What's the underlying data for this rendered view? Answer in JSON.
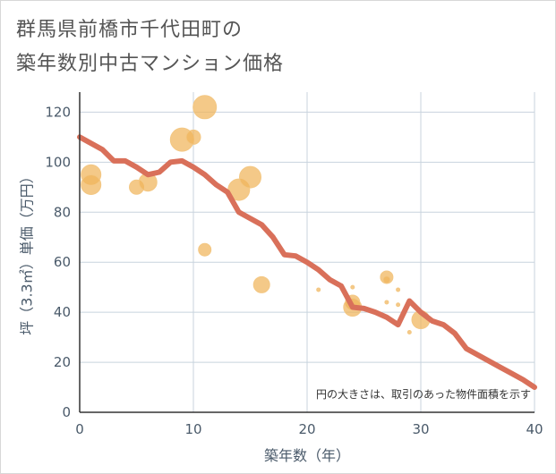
{
  "title_line1": "群馬県前橋市千代田町の",
  "title_line2": "築年数別中古マンション価格",
  "chart_data": {
    "type": "scatter",
    "title": "群馬県前橋市千代田町の築年数別中古マンション価格",
    "xlabel": "築年数（年）",
    "ylabel": "坪（3.3㎡）単価（万円）",
    "xlim": [
      0,
      40
    ],
    "ylim": [
      0,
      128
    ],
    "xticks": [
      0,
      10,
      20,
      30,
      40
    ],
    "yticks": [
      0,
      20,
      40,
      60,
      80,
      100,
      120
    ],
    "grid": true,
    "note": "円の大きさは、取引のあった物件面積を示す",
    "bubble_color": "#f0b45a",
    "line_color": "#d9705a",
    "points": [
      {
        "x": 1,
        "y": 95,
        "size": 11
      },
      {
        "x": 1,
        "y": 91,
        "size": 11
      },
      {
        "x": 5,
        "y": 90,
        "size": 8
      },
      {
        "x": 6,
        "y": 92,
        "size": 10
      },
      {
        "x": 9,
        "y": 109,
        "size": 13
      },
      {
        "x": 10,
        "y": 110,
        "size": 8
      },
      {
        "x": 11,
        "y": 122,
        "size": 13
      },
      {
        "x": 11,
        "y": 65,
        "size": 7
      },
      {
        "x": 14,
        "y": 89,
        "size": 12
      },
      {
        "x": 15,
        "y": 94,
        "size": 12
      },
      {
        "x": 16,
        "y": 51,
        "size": 9
      },
      {
        "x": 21,
        "y": 49,
        "size": 2
      },
      {
        "x": 24,
        "y": 50,
        "size": 2
      },
      {
        "x": 24,
        "y": 44,
        "size": 8
      },
      {
        "x": 24,
        "y": 42,
        "size": 10
      },
      {
        "x": 27,
        "y": 54,
        "size": 7
      },
      {
        "x": 27,
        "y": 53,
        "size": 4
      },
      {
        "x": 27,
        "y": 44,
        "size": 2
      },
      {
        "x": 28,
        "y": 49,
        "size": 2
      },
      {
        "x": 28,
        "y": 43,
        "size": 2
      },
      {
        "x": 29,
        "y": 32,
        "size": 2
      },
      {
        "x": 30,
        "y": 37,
        "size": 10
      }
    ],
    "trend": {
      "x": [
        0,
        2,
        3,
        4,
        5,
        6,
        7,
        8,
        9,
        10,
        11,
        12,
        13,
        14,
        15,
        16,
        17,
        18,
        19,
        20,
        21,
        22,
        23,
        24,
        25,
        26,
        27,
        28,
        29,
        30,
        31,
        32,
        33,
        34,
        35,
        36,
        37,
        38,
        39,
        40
      ],
      "y": [
        110,
        105,
        100.5,
        100.5,
        98,
        95,
        96,
        100,
        100.5,
        98,
        95,
        91,
        88,
        80,
        77.5,
        75,
        70,
        63,
        62.5,
        60,
        57,
        53,
        50.5,
        42,
        41.5,
        40,
        38,
        35,
        44.5,
        40,
        36.5,
        35,
        31.5,
        25.5,
        23,
        20.5,
        18,
        15.5,
        13,
        10
      ]
    }
  }
}
